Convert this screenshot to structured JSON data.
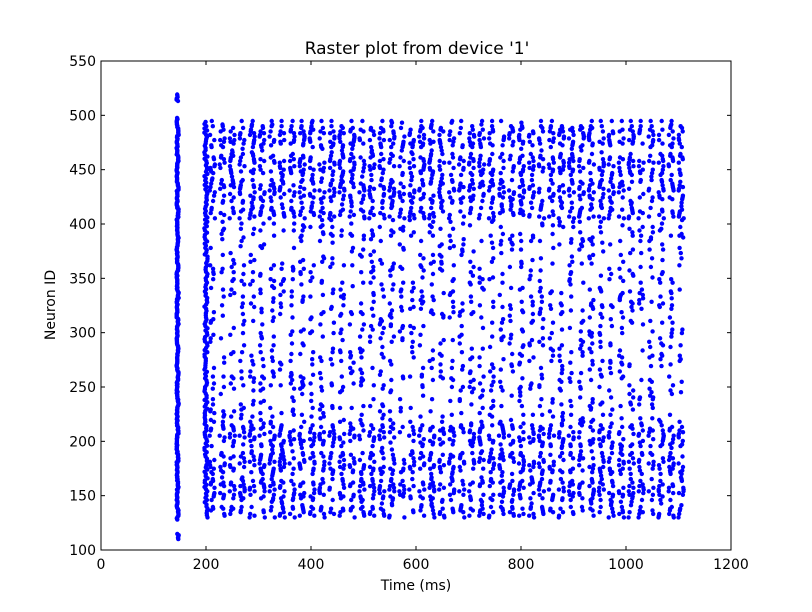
{
  "chart_data": {
    "type": "scatter",
    "title": "Raster plot from device '1'",
    "xlabel": "Time (ms)",
    "ylabel": "Neuron ID",
    "xlim": [
      0,
      1200
    ],
    "ylim": [
      100,
      550
    ],
    "xticks": [
      "0",
      "200",
      "400",
      "600",
      "800",
      "1000",
      "1200"
    ],
    "yticks": [
      "100",
      "150",
      "200",
      "250",
      "300",
      "350",
      "400",
      "450",
      "500",
      "550"
    ],
    "grid": false,
    "legend": "none",
    "marker_color": "#0000ff",
    "raster": {
      "first_spike_time_ms": 150,
      "last_spike_time_ms": 1120,
      "first_neuron_id": 110,
      "last_neuron_id": 520,
      "dense_bands_neuron_ranges": [
        [
          130,
          215
        ],
        [
          405,
          495
        ]
      ],
      "sparse_band_neuron_range": [
        215,
        405
      ],
      "band_period_neurons": 25,
      "initial_volley": {
        "time_ms": 150,
        "neuron_range": [
          110,
          520
        ]
      },
      "second_volley": {
        "time_ms": 200,
        "neuron_range": [
          130,
          495
        ]
      }
    }
  }
}
